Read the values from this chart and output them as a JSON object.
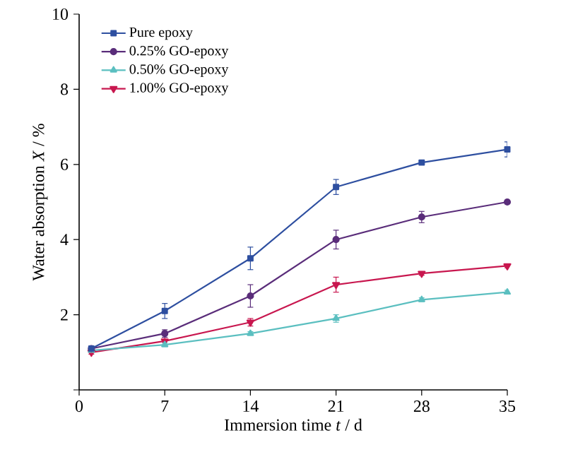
{
  "chart_data": {
    "type": "line",
    "xlabel": "Immersion time *t* / d",
    "ylabel": "Water absorption *X* / %",
    "x": [
      1,
      7,
      14,
      21,
      28,
      35
    ],
    "series": [
      {
        "name": "Pure epoxy",
        "color": "#2e4fa0",
        "marker": "square",
        "values": [
          1.1,
          2.1,
          3.5,
          5.4,
          6.05,
          6.4
        ],
        "errors": [
          0.05,
          0.2,
          0.3,
          0.2,
          0.05,
          0.2
        ]
      },
      {
        "name": "0.25% GO-epoxy",
        "color": "#5a2d7a",
        "marker": "circle",
        "values": [
          1.1,
          1.5,
          2.5,
          4.0,
          4.6,
          5.0
        ],
        "errors": [
          0.05,
          0.1,
          0.3,
          0.25,
          0.15,
          0.05
        ]
      },
      {
        "name": "0.50% GO-epoxy",
        "color": "#5bbfc0",
        "marker": "triangle",
        "values": [
          1.05,
          1.2,
          1.5,
          1.9,
          2.4,
          2.6
        ],
        "errors": [
          0.05,
          0.05,
          0.05,
          0.1,
          0.05,
          0.05
        ]
      },
      {
        "name": "1.00% GO-epoxy",
        "color": "#c8174f",
        "marker": "triangle-down",
        "values": [
          1.0,
          1.3,
          1.8,
          2.8,
          3.1,
          3.3
        ],
        "errors": [
          0.05,
          0.1,
          0.1,
          0.2,
          0.05,
          0.05
        ]
      }
    ],
    "xlim": [
      0,
      35
    ],
    "ylim": [
      0,
      10
    ],
    "xticks": [
      0,
      7,
      14,
      21,
      28,
      35
    ],
    "yticks": [
      {
        "value": 0,
        "label": null
      },
      2,
      4,
      6,
      8,
      10
    ],
    "legend": "top left",
    "grid": false,
    "line_style": "solid"
  }
}
